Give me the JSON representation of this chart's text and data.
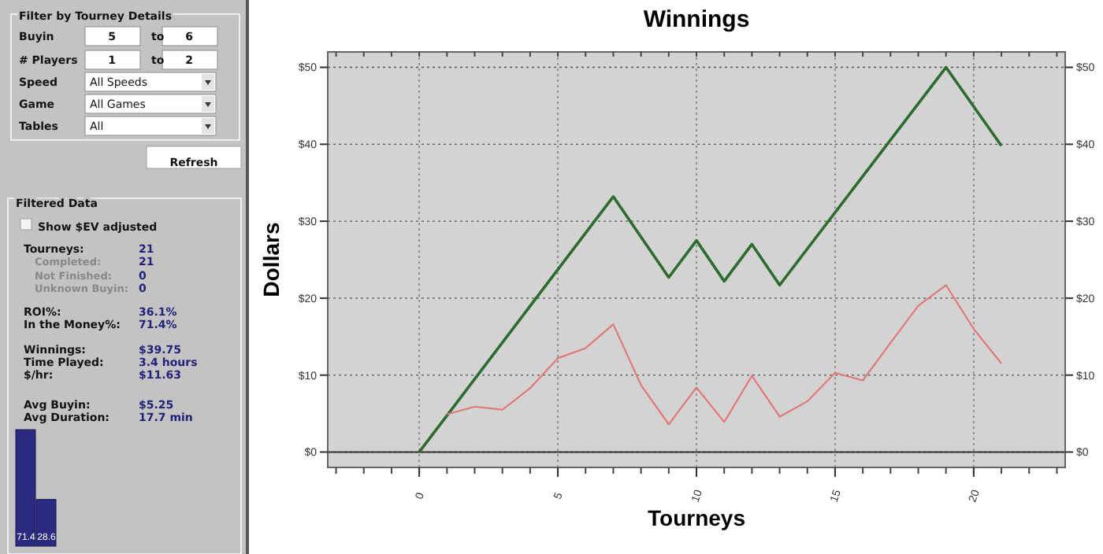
{
  "chart_data": [
    {
      "type": "other",
      "annotations": [
        "Filter by Tourney Details",
        "Buyin",
        "5",
        "to",
        "6",
        "# Players",
        "1",
        "to",
        "2",
        "Speed",
        "All Speeds",
        "Game",
        "All Games",
        "Tables",
        "All",
        "Refresh",
        "Filtered Data",
        "Show $EV adjusted",
        "Tourneys:",
        "21",
        "Completed:",
        "21",
        "Not Finished:",
        "0",
        "Unknown Buyin:",
        "0",
        "ROI%:",
        "36.1%",
        "In the Money%:",
        "71.4%",
        "Winnings:",
        "$39.75",
        "Time Played:",
        "3.4 hours",
        "$/hr:",
        "$11.63",
        "Avg Buyin:",
        "$5.25",
        "Avg Duration:",
        "17.7 min"
      ]
    },
    {
      "type": "bar",
      "categories": [
        null,
        null
      ],
      "values": [
        71.4,
        28.6
      ],
      "color": "#2b2a80",
      "data_labels": true
    },
    {
      "type": "line",
      "title": "Winnings",
      "xlabel": "Tourneys",
      "ylabel": "Dollars",
      "xlim": [
        -3.3,
        23.3
      ],
      "xticks": [
        0,
        5,
        10,
        15,
        20
      ],
      "ylim": [
        -2,
        52
      ],
      "yticks": [
        {
          "value": 0,
          "label": "$0"
        },
        {
          "value": 10,
          "label": "$10"
        },
        {
          "value": 20,
          "label": "$20"
        },
        {
          "value": 30,
          "label": "$30"
        },
        {
          "value": 40,
          "label": "$40"
        },
        {
          "value": 50,
          "label": "$50"
        }
      ],
      "y2lim": [
        -2,
        52
      ],
      "y2ticks": [
        {
          "value": 0,
          "label": "$0"
        },
        {
          "value": 10,
          "label": "$10"
        },
        {
          "value": 20,
          "label": "$20"
        },
        {
          "value": 30,
          "label": "$30"
        },
        {
          "value": 40,
          "label": "$40"
        },
        {
          "value": 50,
          "label": "$50"
        }
      ],
      "grid": true,
      "ref_lines": [
        {
          "axis": "y",
          "value": 0,
          "color": "#333333",
          "line_style": "solid"
        }
      ],
      "series": [
        {
          "x": [
            0,
            7,
            9,
            10,
            11,
            12,
            13,
            19,
            21
          ],
          "values": [
            0,
            33.2,
            22.7,
            27.5,
            22.2,
            27,
            21.7,
            50,
            39.8
          ],
          "color": "#2e6b2e"
        },
        {
          "x": [
            1,
            2,
            3,
            4,
            5,
            6,
            7,
            8,
            9,
            10,
            11,
            12,
            13,
            14,
            15,
            16,
            17,
            18,
            19,
            20,
            21
          ],
          "values": [
            4.9,
            5.9,
            5.5,
            8.3,
            12.2,
            13.5,
            16.6,
            8.7,
            3.6,
            8.4,
            3.9,
            9.9,
            4.6,
            6.6,
            10.3,
            9.3,
            14.2,
            19,
            21.7,
            16,
            11.5
          ],
          "color": "#e07a7a"
        }
      ]
    }
  ]
}
